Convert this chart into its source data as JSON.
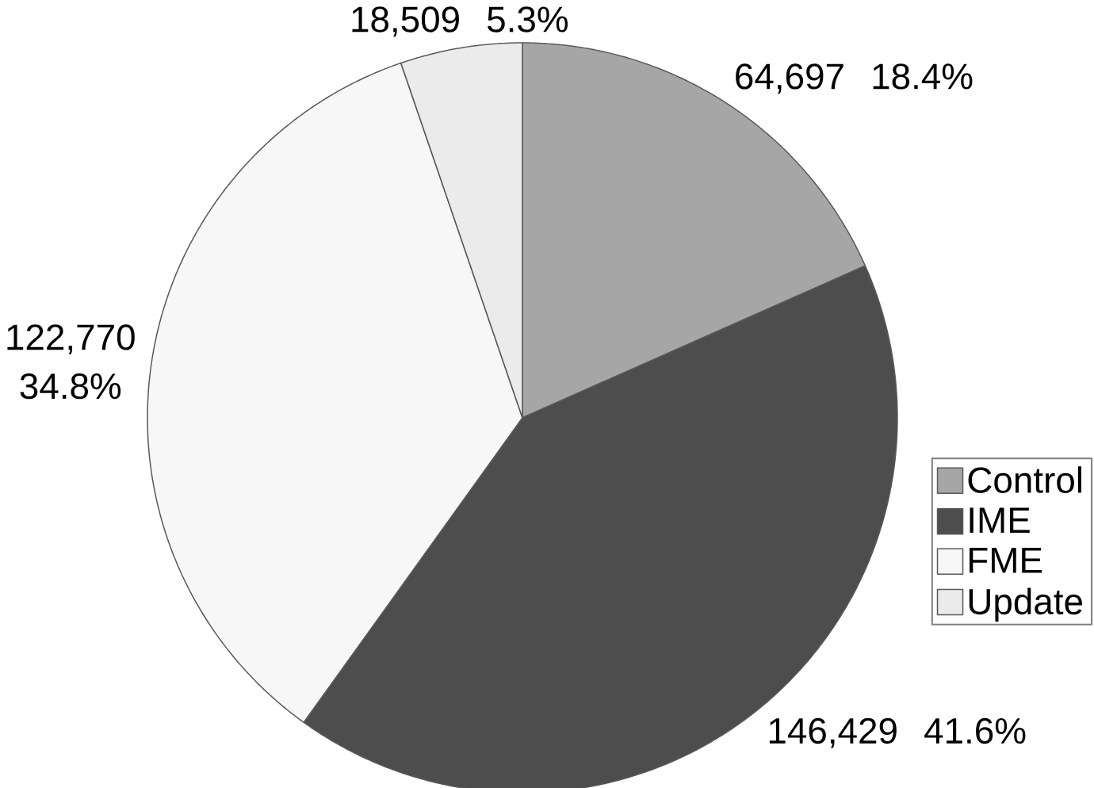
{
  "chart_data": {
    "type": "pie",
    "categories": [
      "Control",
      "IME",
      "FME",
      "Update"
    ],
    "values": [
      64697,
      146429,
      122770,
      18509
    ],
    "colors": [
      "#a6a6a6",
      "#4d4d4d",
      "#f7f7f7",
      "#ebebeb"
    ],
    "value_labels": [
      "64,697 18.4%",
      "146,429 41.6%",
      "122,770 34.8%",
      "18,509 5.3%"
    ],
    "legend": "right"
  }
}
